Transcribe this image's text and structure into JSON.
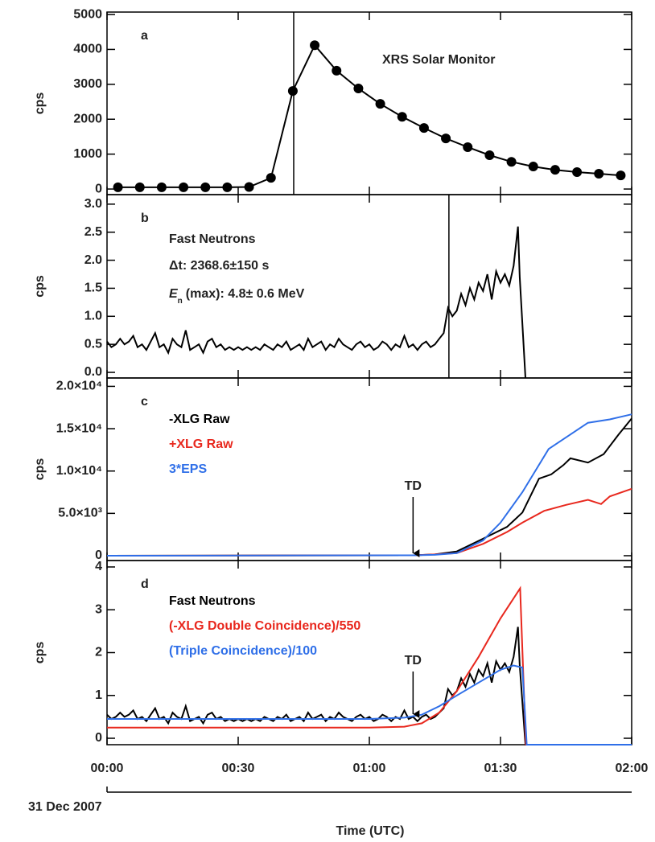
{
  "chart_data": [
    {
      "type": "line",
      "panel_label": "a",
      "ylabel": "cps",
      "xlim": [
        0,
        120
      ],
      "ylim": [
        -160,
        5070
      ],
      "yticks": [
        0,
        1000,
        2000,
        3000,
        4000,
        5000
      ],
      "markers": true,
      "vline": 42.7,
      "annotations": [
        "XRS Solar Monitor"
      ],
      "series": [
        {
          "name": null,
          "color": "#000000",
          "x": [
            2.5,
            7.5,
            12.5,
            17.5,
            22.5,
            27.5,
            32.5,
            37.5,
            42.5,
            47.5,
            52.5,
            57.5,
            62.5,
            67.5,
            72.5,
            77.5,
            82.5,
            87.5,
            92.5,
            97.5,
            102.5,
            107.5,
            112.5,
            117.5
          ],
          "values": [
            50,
            50,
            50,
            50,
            50,
            50,
            60,
            320,
            2810,
            4120,
            3390,
            2880,
            2440,
            2070,
            1750,
            1450,
            1200,
            970,
            780,
            645,
            550,
            485,
            440,
            390
          ]
        }
      ]
    },
    {
      "type": "line",
      "panel_label": "b",
      "ylabel": "cps",
      "xlim": [
        0,
        120
      ],
      "ylim": [
        -0.1,
        3.17
      ],
      "yticks": [
        {
          "value": 0,
          "label": "0.0"
        },
        0.5,
        {
          "value": 1,
          "label": "1.0"
        },
        1.5,
        {
          "value": 2,
          "label": "2.0"
        },
        2.5,
        {
          "value": 3,
          "label": "3.0"
        }
      ],
      "vline": 78.2,
      "annotations": [
        "Fast Neutrons",
        "Δt: 2368.6±150 s"
      ],
      "energy_label": {
        "symbol": "E",
        "subscript": "n",
        "text": "(max):  4.8± 0.6 MeV"
      },
      "series": [
        {
          "name": null,
          "color": "#000000",
          "x": [
            0,
            1,
            2,
            3,
            4,
            5,
            6,
            7,
            8,
            9,
            10,
            11,
            12,
            13,
            14,
            15,
            16,
            17,
            18,
            19,
            20,
            21,
            22,
            23,
            24,
            25,
            26,
            27,
            28,
            29,
            30,
            31,
            32,
            33,
            34,
            35,
            36,
            37,
            38,
            39,
            40,
            41,
            42,
            43,
            44,
            45,
            46,
            47,
            48,
            49,
            50,
            51,
            52,
            53,
            54,
            55,
            56,
            57,
            58,
            59,
            60,
            61,
            62,
            63,
            64,
            65,
            66,
            67,
            68,
            69,
            70,
            71,
            72,
            73,
            74,
            75,
            76,
            77,
            78,
            79,
            80,
            81,
            82,
            83,
            84,
            85,
            86,
            87,
            88,
            89,
            90,
            91,
            92,
            93,
            94,
            94.4,
            95.7
          ],
          "values": [
            0.55,
            0.45,
            0.5,
            0.6,
            0.5,
            0.55,
            0.65,
            0.45,
            0.5,
            0.4,
            0.55,
            0.7,
            0.45,
            0.5,
            0.35,
            0.6,
            0.5,
            0.45,
            0.75,
            0.4,
            0.45,
            0.5,
            0.35,
            0.55,
            0.6,
            0.45,
            0.5,
            0.4,
            0.45,
            0.4,
            0.45,
            0.4,
            0.45,
            0.4,
            0.45,
            0.4,
            0.5,
            0.45,
            0.4,
            0.5,
            0.45,
            0.55,
            0.4,
            0.45,
            0.5,
            0.4,
            0.6,
            0.45,
            0.5,
            0.55,
            0.4,
            0.5,
            0.45,
            0.6,
            0.5,
            0.45,
            0.4,
            0.5,
            0.55,
            0.45,
            0.5,
            0.4,
            0.45,
            0.55,
            0.5,
            0.4,
            0.5,
            0.45,
            0.65,
            0.45,
            0.5,
            0.4,
            0.5,
            0.55,
            0.45,
            0.5,
            0.6,
            0.7,
            1.15,
            1.0,
            1.1,
            1.4,
            1.2,
            1.5,
            1.3,
            1.6,
            1.45,
            1.75,
            1.3,
            1.8,
            1.6,
            1.75,
            1.55,
            1.9,
            2.6,
            1.7,
            -0.1
          ]
        }
      ]
    },
    {
      "type": "line",
      "panel_label": "c",
      "ylabel": "cps",
      "xlim": [
        0,
        120
      ],
      "ylim": [
        -570,
        20990
      ],
      "yticks": [
        0,
        {
          "value": 5000,
          "label": "5.0×10³"
        },
        {
          "value": 10000,
          "label": "1.0×10⁴"
        },
        {
          "value": 15000,
          "label": "1.5×10⁴"
        },
        {
          "value": 20000,
          "label": "2.0×10⁴"
        }
      ],
      "legend": true,
      "td": {
        "text": "TD",
        "x": 70
      },
      "series": [
        {
          "name": "-XLG Raw",
          "color": "#000000",
          "x": [
            0,
            70,
            75,
            80,
            86,
            91.5,
            95,
            98.8,
            101.6,
            104.4,
            106,
            110,
            113.6,
            117,
            120
          ],
          "values": [
            0,
            50,
            150,
            500,
            2000,
            3400,
            5100,
            9100,
            9600,
            10700,
            11500,
            11000,
            12000,
            14300,
            16200
          ]
        },
        {
          "name": "+XLG Raw",
          "color": "#e8281e",
          "x": [
            0,
            70,
            75,
            80,
            86,
            91.5,
            95,
            100,
            105,
            110,
            113,
            115,
            120
          ],
          "values": [
            0,
            50,
            150,
            300,
            1400,
            2800,
            3900,
            5300,
            6000,
            6600,
            6100,
            7000,
            7900
          ]
        },
        {
          "name": "3*EPS",
          "color": "#2f6fe8",
          "x": [
            0,
            70,
            75,
            80,
            86,
            90,
            95,
            101,
            110,
            115,
            120
          ],
          "values": [
            0,
            50,
            100,
            300,
            1800,
            3900,
            7500,
            12600,
            15700,
            16100,
            16700
          ]
        }
      ]
    },
    {
      "type": "line",
      "panel_label": "d",
      "ylabel": "cps",
      "xlim": [
        0,
        120
      ],
      "ylim": [
        -0.15,
        4.15
      ],
      "yticks": [
        0,
        1,
        2,
        3,
        4
      ],
      "legend": true,
      "td": {
        "text": "TD",
        "x": 70
      },
      "xticks": [
        {
          "value": 0,
          "label": "00:00"
        },
        {
          "value": 30,
          "label": "00:30"
        },
        {
          "value": 60,
          "label": "01:00"
        },
        {
          "value": 90,
          "label": "01:30"
        },
        {
          "value": 120,
          "label": "02:00"
        }
      ],
      "date_label": "31 Dec 2007",
      "xlabel": "Time (UTC)",
      "series": [
        {
          "name": "Fast Neutrons",
          "color": "#000000",
          "x": [
            0,
            1,
            2,
            3,
            4,
            5,
            6,
            7,
            8,
            9,
            10,
            11,
            12,
            13,
            14,
            15,
            16,
            17,
            18,
            19,
            20,
            21,
            22,
            23,
            24,
            25,
            26,
            27,
            28,
            29,
            30,
            31,
            32,
            33,
            34,
            35,
            36,
            37,
            38,
            39,
            40,
            41,
            42,
            43,
            44,
            45,
            46,
            47,
            48,
            49,
            50,
            51,
            52,
            53,
            54,
            55,
            56,
            57,
            58,
            59,
            60,
            61,
            62,
            63,
            64,
            65,
            66,
            67,
            68,
            69,
            70,
            71,
            72,
            73,
            74,
            75,
            76,
            77,
            78,
            79,
            80,
            81,
            82,
            83,
            84,
            85,
            86,
            87,
            88,
            89,
            90,
            91,
            92,
            93,
            94,
            94.4,
            95.7,
            120
          ],
          "values": [
            0.55,
            0.45,
            0.5,
            0.6,
            0.5,
            0.55,
            0.65,
            0.45,
            0.5,
            0.4,
            0.55,
            0.7,
            0.45,
            0.5,
            0.35,
            0.6,
            0.5,
            0.45,
            0.75,
            0.4,
            0.45,
            0.5,
            0.35,
            0.55,
            0.6,
            0.45,
            0.5,
            0.4,
            0.45,
            0.4,
            0.45,
            0.4,
            0.45,
            0.4,
            0.45,
            0.4,
            0.5,
            0.45,
            0.4,
            0.5,
            0.45,
            0.55,
            0.4,
            0.45,
            0.5,
            0.4,
            0.6,
            0.45,
            0.5,
            0.55,
            0.4,
            0.5,
            0.45,
            0.6,
            0.5,
            0.45,
            0.4,
            0.5,
            0.55,
            0.45,
            0.5,
            0.4,
            0.45,
            0.55,
            0.5,
            0.4,
            0.5,
            0.45,
            0.65,
            0.45,
            0.5,
            0.4,
            0.5,
            0.55,
            0.45,
            0.5,
            0.6,
            0.7,
            1.15,
            1.0,
            1.1,
            1.4,
            1.2,
            1.5,
            1.3,
            1.6,
            1.45,
            1.75,
            1.3,
            1.8,
            1.6,
            1.75,
            1.55,
            1.9,
            2.6,
            1.7,
            -0.15,
            -0.15
          ]
        },
        {
          "name": "(-XLG Double Coincidence)/550",
          "color": "#e8281e",
          "x": [
            0,
            60,
            68,
            72,
            76,
            80,
            85,
            90,
            94.5,
            95.8,
            120
          ],
          "values": [
            0.25,
            0.25,
            0.27,
            0.35,
            0.6,
            1.1,
            1.9,
            2.8,
            3.5,
            -0.15,
            -0.15
          ]
        },
        {
          "name": "(Triple Coincidence)/100",
          "color": "#2f6fe8",
          "x": [
            0,
            60,
            68,
            72,
            76,
            80,
            85,
            90,
            93,
            95,
            96,
            120
          ],
          "values": [
            0.45,
            0.45,
            0.48,
            0.55,
            0.75,
            1.0,
            1.3,
            1.6,
            1.7,
            1.65,
            -0.15,
            -0.15
          ]
        }
      ]
    }
  ]
}
